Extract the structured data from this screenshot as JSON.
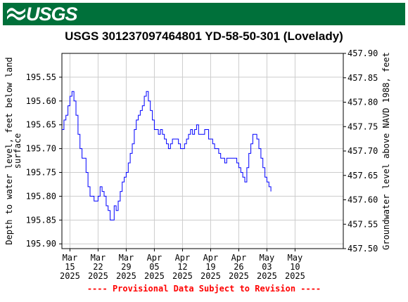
{
  "header": {
    "logo_text": "USGS",
    "bar_color": "#00703a"
  },
  "chart_data": {
    "type": "line",
    "title": "USGS 301237097464801 YD-58-50-301 (Lovelady)",
    "ylabel_left_line1": "Depth to water level, feet below land",
    "ylabel_left_line2": "surface",
    "ylabel_right": "Groundwater level above NAVD 1988, feet",
    "left_axis": {
      "range": [
        195.91,
        195.5
      ],
      "ticks": [
        "195.55",
        "195.60",
        "195.65",
        "195.70",
        "195.75",
        "195.80",
        "195.85",
        "195.90"
      ],
      "inverted": true
    },
    "right_axis": {
      "range": [
        457.5,
        457.9
      ],
      "ticks": [
        "457.50",
        "457.55",
        "457.60",
        "457.65",
        "457.70",
        "457.75",
        "457.80",
        "457.85",
        "457.90"
      ]
    },
    "x_range_days": [
      0,
      70
    ],
    "x_ticks": [
      {
        "day": 2,
        "line1": "Mar",
        "line2": "15",
        "line3": "2025"
      },
      {
        "day": 9,
        "line1": "Mar",
        "line2": "22",
        "line3": "2025"
      },
      {
        "day": 16,
        "line1": "Mar",
        "line2": "29",
        "line3": "2025"
      },
      {
        "day": 23,
        "line1": "Apr",
        "line2": "05",
        "line3": "2025"
      },
      {
        "day": 30,
        "line1": "Apr",
        "line2": "12",
        "line3": "2025"
      },
      {
        "day": 37,
        "line1": "Apr",
        "line2": "19",
        "line3": "2025"
      },
      {
        "day": 44,
        "line1": "Apr",
        "line2": "26",
        "line3": "2025"
      },
      {
        "day": 51,
        "line1": "May",
        "line2": "03",
        "line3": "2025"
      },
      {
        "day": 58,
        "line1": "May",
        "line2": "10",
        "line3": "2025"
      }
    ],
    "grid": true,
    "line_color": "#0000ff",
    "series": [
      {
        "points": [
          [
            0,
            195.66
          ],
          [
            0.5,
            195.64
          ],
          [
            1,
            195.63
          ],
          [
            1.5,
            195.61
          ],
          [
            2,
            195.59
          ],
          [
            2.5,
            195.58
          ],
          [
            3,
            195.6
          ],
          [
            3.5,
            195.63
          ],
          [
            4,
            195.67
          ],
          [
            4.5,
            195.7
          ],
          [
            5,
            195.72
          ],
          [
            5.5,
            195.72
          ],
          [
            6,
            195.75
          ],
          [
            6.5,
            195.78
          ],
          [
            7,
            195.8
          ],
          [
            8,
            195.81
          ],
          [
            9,
            195.8
          ],
          [
            9.5,
            195.78
          ],
          [
            10,
            195.79
          ],
          [
            10.5,
            195.8
          ],
          [
            11,
            195.82
          ],
          [
            11.5,
            195.83
          ],
          [
            12,
            195.85
          ],
          [
            12.5,
            195.85
          ],
          [
            13,
            195.82
          ],
          [
            13.5,
            195.83
          ],
          [
            14,
            195.81
          ],
          [
            14.5,
            195.79
          ],
          [
            15,
            195.77
          ],
          [
            15.5,
            195.76
          ],
          [
            16,
            195.75
          ],
          [
            16.5,
            195.73
          ],
          [
            17,
            195.71
          ],
          [
            17.5,
            195.69
          ],
          [
            18,
            195.66
          ],
          [
            18.5,
            195.64
          ],
          [
            19,
            195.63
          ],
          [
            19.5,
            195.62
          ],
          [
            20,
            195.61
          ],
          [
            20.5,
            195.59
          ],
          [
            21,
            195.58
          ],
          [
            21.5,
            195.6
          ],
          [
            22,
            195.62
          ],
          [
            22.5,
            195.64
          ],
          [
            23,
            195.66
          ],
          [
            24,
            195.67
          ],
          [
            24.5,
            195.66
          ],
          [
            25,
            195.67
          ],
          [
            25.5,
            195.68
          ],
          [
            26,
            195.69
          ],
          [
            26.5,
            195.7
          ],
          [
            27,
            195.69
          ],
          [
            27.5,
            195.68
          ],
          [
            28,
            195.68
          ],
          [
            28.5,
            195.68
          ],
          [
            29,
            195.69
          ],
          [
            29.5,
            195.7
          ],
          [
            30,
            195.7
          ],
          [
            30.5,
            195.69
          ],
          [
            31,
            195.68
          ],
          [
            31.5,
            195.67
          ],
          [
            32,
            195.66
          ],
          [
            32.5,
            195.67
          ],
          [
            33,
            195.66
          ],
          [
            33.5,
            195.65
          ],
          [
            34,
            195.67
          ],
          [
            34.5,
            195.67
          ],
          [
            35,
            195.67
          ],
          [
            35.5,
            195.66
          ],
          [
            36,
            195.66
          ],
          [
            36.5,
            195.68
          ],
          [
            37,
            195.68
          ],
          [
            37.5,
            195.69
          ],
          [
            38,
            195.7
          ],
          [
            38.5,
            195.7
          ],
          [
            39,
            195.71
          ],
          [
            39.5,
            195.72
          ],
          [
            40,
            195.72
          ],
          [
            40.5,
            195.73
          ],
          [
            41,
            195.72
          ],
          [
            41.5,
            195.72
          ],
          [
            42,
            195.72
          ],
          [
            42.5,
            195.72
          ],
          [
            43,
            195.72
          ],
          [
            43.5,
            195.73
          ],
          [
            44,
            195.74
          ],
          [
            44.5,
            195.75
          ],
          [
            45,
            195.76
          ],
          [
            45.5,
            195.77
          ],
          [
            46,
            195.74
          ],
          [
            46.5,
            195.71
          ],
          [
            47,
            195.69
          ],
          [
            47.5,
            195.67
          ],
          [
            48,
            195.67
          ],
          [
            48.5,
            195.68
          ],
          [
            49,
            195.7
          ],
          [
            49.5,
            195.72
          ],
          [
            50,
            195.74
          ],
          [
            50.5,
            195.76
          ],
          [
            51,
            195.77
          ],
          [
            51.5,
            195.78
          ],
          [
            52,
            195.79
          ]
        ]
      }
    ],
    "footer_note": "---- Provisional Data Subject to Revision ----",
    "footer_color": "#ff0000"
  }
}
